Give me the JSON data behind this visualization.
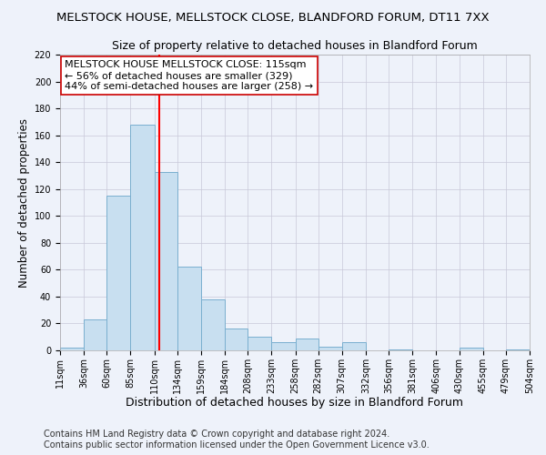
{
  "title": "MELSTOCK HOUSE, MELLSTOCK CLOSE, BLANDFORD FORUM, DT11 7XX",
  "subtitle": "Size of property relative to detached houses in Blandford Forum",
  "xlabel": "Distribution of detached houses by size in Blandford Forum",
  "ylabel": "Number of detached properties",
  "footer_line1": "Contains HM Land Registry data © Crown copyright and database right 2024.",
  "footer_line2": "Contains public sector information licensed under the Open Government Licence v3.0.",
  "bin_edges": [
    11,
    36,
    60,
    85,
    110,
    134,
    159,
    184,
    208,
    233,
    258,
    282,
    307,
    332,
    356,
    381,
    406,
    430,
    455,
    479,
    504
  ],
  "bin_counts": [
    2,
    23,
    115,
    168,
    133,
    62,
    38,
    16,
    10,
    6,
    9,
    3,
    6,
    0,
    1,
    0,
    0,
    2,
    0,
    1
  ],
  "property_size": 115,
  "annotation_title": "MELSTOCK HOUSE MELLSTOCK CLOSE: 115sqm",
  "annotation_line2": "← 56% of detached houses are smaller (329)",
  "annotation_line3": "44% of semi-detached houses are larger (258) →",
  "bar_color": "#c8dff0",
  "bar_edge_color": "#7aafcf",
  "vline_color": "red",
  "vline_x": 115,
  "ylim": [
    0,
    220
  ],
  "yticks": [
    0,
    20,
    40,
    60,
    80,
    100,
    120,
    140,
    160,
    180,
    200,
    220
  ],
  "background_color": "#eef2fa",
  "grid_color": "#c8c8d8",
  "title_fontsize": 9.5,
  "subtitle_fontsize": 9,
  "xlabel_fontsize": 9,
  "ylabel_fontsize": 8.5,
  "tick_label_fontsize": 7,
  "annotation_fontsize": 8,
  "footer_fontsize": 7
}
